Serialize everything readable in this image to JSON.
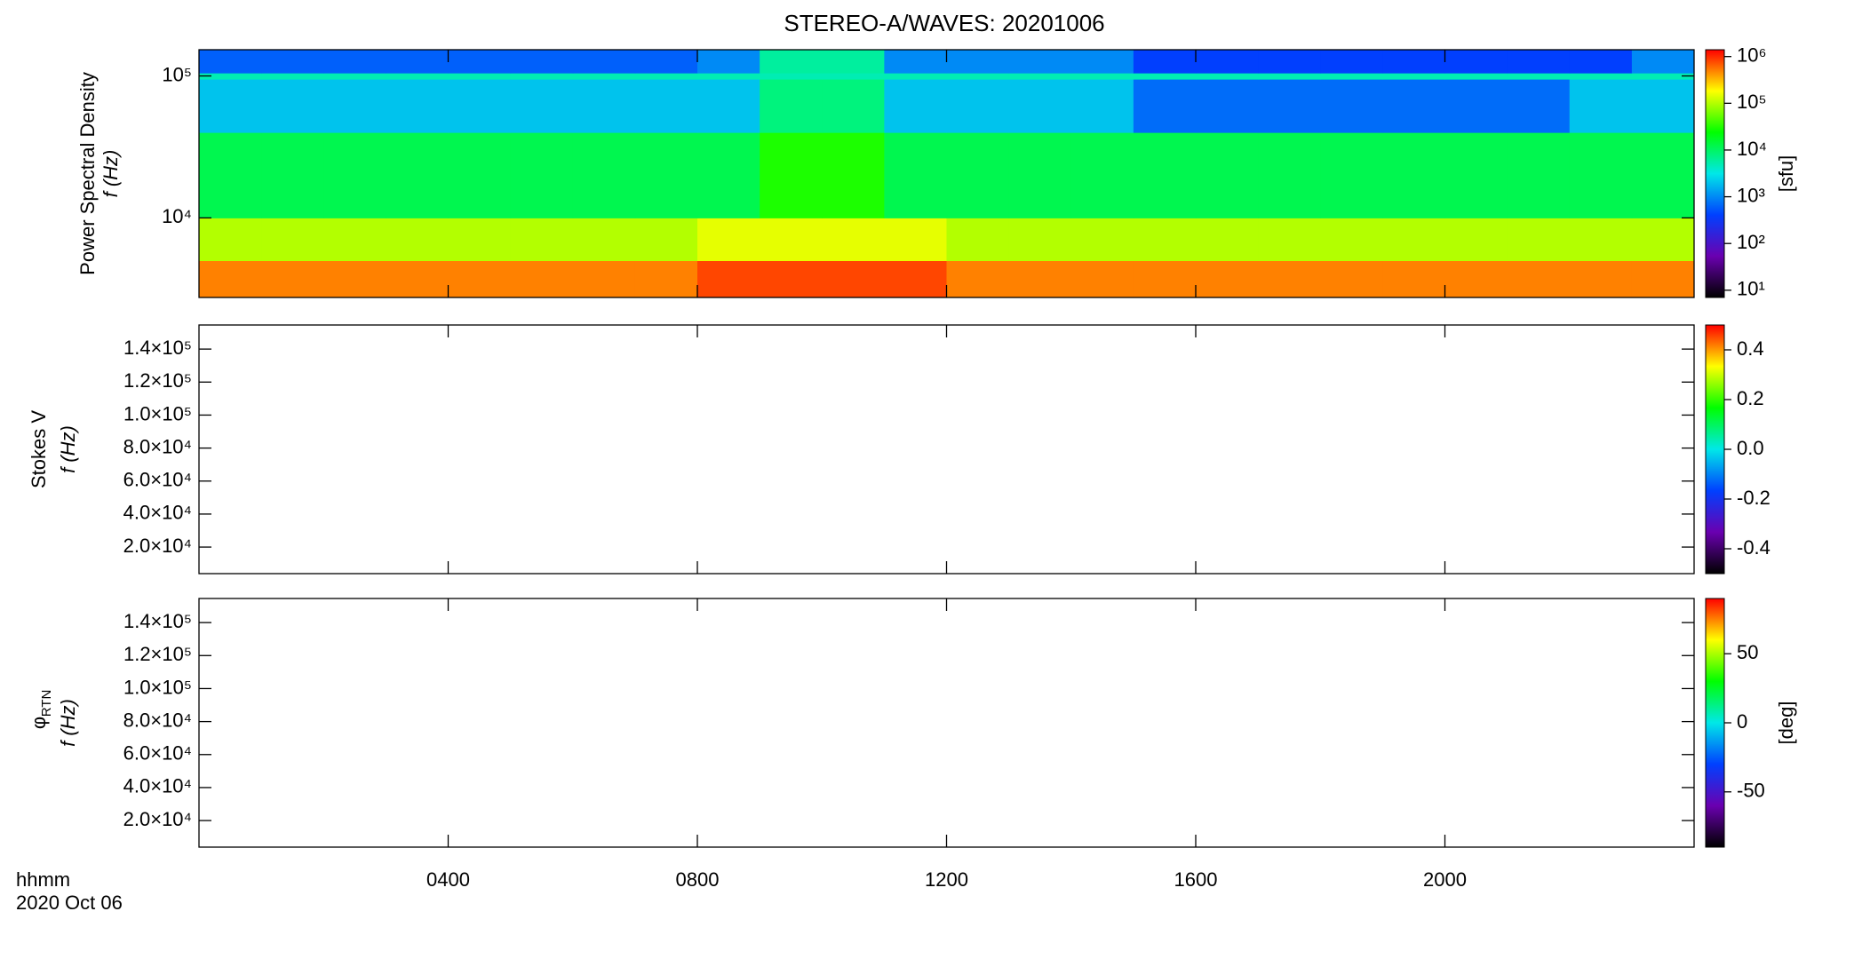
{
  "title": "STEREO-A/WAVES: 20201006",
  "xlabel": "hhmm",
  "date": "2020 Oct 06",
  "chart_data": [
    {
      "type": "heatmap",
      "ylabel": [
        "Power Spectral Density",
        "f (Hz)"
      ],
      "yscale": "log",
      "xlim": [
        0,
        24
      ],
      "xticks": [
        {
          "value": 4,
          "label": "0400"
        },
        {
          "value": 8,
          "label": "0800"
        },
        {
          "value": 12,
          "label": "1200"
        },
        {
          "value": 16,
          "label": "1600"
        },
        {
          "value": 20,
          "label": "2000"
        }
      ],
      "ylim": [
        2750,
        153000
      ],
      "yticks": [
        {
          "value": 10000,
          "label": "10⁴"
        },
        {
          "value": 100000,
          "label": "10⁵"
        }
      ],
      "x_edges": [
        0,
        1,
        2,
        3,
        4,
        5,
        6,
        7,
        8,
        9,
        10,
        11,
        12,
        13,
        14,
        15,
        16,
        17,
        18,
        19,
        20,
        21,
        22,
        23,
        24
      ],
      "y_edges": [
        2750,
        5000,
        10000,
        40000,
        95000,
        105000,
        153000
      ],
      "values": [
        [
          500000,
          500000,
          500000,
          500000,
          500000,
          500000,
          500000,
          500000,
          800000,
          800000,
          800000,
          800000,
          500000,
          500000,
          500000,
          500000,
          500000,
          500000,
          500000,
          500000,
          500000,
          500000,
          500000,
          500000
        ],
        [
          100000,
          100000,
          100000,
          100000,
          100000,
          100000,
          100000,
          100000,
          150000,
          150000,
          150000,
          150000,
          100000,
          100000,
          100000,
          100000,
          100000,
          100000,
          100000,
          100000,
          100000,
          100000,
          100000,
          100000
        ],
        [
          12000,
          12000,
          12000,
          12000,
          12000,
          12000,
          12000,
          12000,
          12000,
          30000,
          30000,
          12000,
          12000,
          12000,
          12000,
          12000,
          12000,
          12000,
          12000,
          12000,
          12000,
          12000,
          12000,
          12000
        ],
        [
          2000,
          2000,
          2000,
          2000,
          2000,
          2000,
          2000,
          2000,
          2000,
          8000,
          8000,
          2000,
          2000,
          2000,
          2000,
          700,
          700,
          700,
          700,
          700,
          700,
          700,
          2000,
          2000
        ],
        [
          5000,
          5000,
          5000,
          5000,
          5000,
          5000,
          5000,
          5000,
          5000,
          5000,
          5000,
          5000,
          5000,
          5000,
          5000,
          5000,
          5000,
          5000,
          5000,
          5000,
          5000,
          5000,
          5000,
          5000
        ],
        [
          600,
          600,
          600,
          600,
          600,
          600,
          600,
          600,
          1000,
          6000,
          6000,
          1000,
          1000,
          1000,
          1000,
          400,
          400,
          400,
          400,
          400,
          400,
          400,
          400,
          1000
        ]
      ],
      "colorscale": [
        "#000000",
        "#6a00b0",
        "#0040ff",
        "#00e8e8",
        "#00ff00",
        "#ffff00",
        "#ff0000"
      ],
      "colorbar": {
        "label": "[sfu]",
        "scale": "log",
        "zlim": [
          7,
          1400000
        ],
        "zticks": [
          {
            "value": 10,
            "label": "10¹"
          },
          {
            "value": 100,
            "label": "10²"
          },
          {
            "value": 1000,
            "label": "10³"
          },
          {
            "value": 10000,
            "label": "10⁴"
          },
          {
            "value": 100000,
            "label": "10⁵"
          },
          {
            "value": 1000000,
            "label": "10⁶"
          }
        ]
      }
    },
    {
      "type": "heatmap",
      "ylabel": [
        "Stokes V",
        "f (Hz)"
      ],
      "yscale": "linear",
      "xlim": [
        0,
        24
      ],
      "xticks": [
        {
          "value": 4,
          "label": "0400"
        },
        {
          "value": 8,
          "label": "0800"
        },
        {
          "value": 12,
          "label": "1200"
        },
        {
          "value": 16,
          "label": "1600"
        },
        {
          "value": 20,
          "label": "2000"
        }
      ],
      "ylim": [
        3900,
        154600
      ],
      "yticks": [
        {
          "value": 20000,
          "label": "2.0×10⁴"
        },
        {
          "value": 40000,
          "label": "4.0×10⁴"
        },
        {
          "value": 60000,
          "label": "6.0×10⁴"
        },
        {
          "value": 80000,
          "label": "8.0×10⁴"
        },
        {
          "value": 100000,
          "label": "1.0×10⁵"
        },
        {
          "value": 120000,
          "label": "1.2×10⁵"
        },
        {
          "value": 140000,
          "label": "1.4×10⁵"
        }
      ],
      "colorscale": [
        "#000000",
        "#6a00b0",
        "#0040ff",
        "#00e8e8",
        "#00ff00",
        "#ffff00",
        "#ff0000"
      ],
      "colorbar": {
        "scale": "linear",
        "zlim": [
          -0.5,
          0.5
        ],
        "zticks": [
          -0.4,
          -0.2,
          {
            "value": 0,
            "label": "0.0"
          },
          0.2,
          0.4
        ]
      }
    },
    {
      "type": "heatmap",
      "ylabel": [
        "φ",
        "f (Hz)"
      ],
      "ylabel_sub": "RTN",
      "yscale": "linear",
      "xlim": [
        0,
        24
      ],
      "xticks": [
        {
          "value": 4,
          "label": "0400"
        },
        {
          "value": 8,
          "label": "0800"
        },
        {
          "value": 12,
          "label": "1200"
        },
        {
          "value": 16,
          "label": "1600"
        },
        {
          "value": 20,
          "label": "2000"
        }
      ],
      "ylim": [
        3900,
        154600
      ],
      "yticks": [
        {
          "value": 20000,
          "label": "2.0×10⁴"
        },
        {
          "value": 40000,
          "label": "4.0×10⁴"
        },
        {
          "value": 60000,
          "label": "6.0×10⁴"
        },
        {
          "value": 80000,
          "label": "8.0×10⁴"
        },
        {
          "value": 100000,
          "label": "1.0×10⁵"
        },
        {
          "value": 120000,
          "label": "1.2×10⁵"
        },
        {
          "value": 140000,
          "label": "1.4×10⁵"
        }
      ],
      "colorscale": [
        "#000000",
        "#6a00b0",
        "#0040ff",
        "#00e8e8",
        "#00ff00",
        "#ffff00",
        "#ff0000"
      ],
      "colorbar": {
        "label": "[deg]",
        "scale": "linear",
        "zlim": [
          -90,
          90
        ],
        "zticks": [
          -50,
          0,
          50
        ]
      }
    }
  ]
}
